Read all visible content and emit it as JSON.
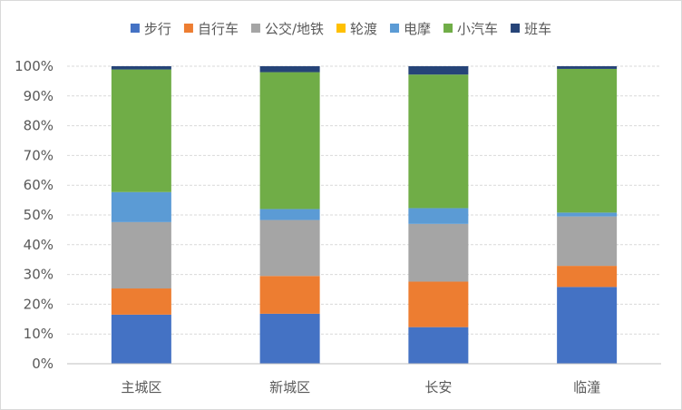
{
  "chart_data": {
    "type": "bar",
    "stacked": true,
    "normalized": true,
    "categories": [
      "主城区",
      "新城区",
      "长安",
      "临潼"
    ],
    "series": [
      {
        "name": "步行",
        "color": "#4472C4",
        "values": [
          16.5,
          16.8,
          12.3,
          25.8
        ]
      },
      {
        "name": "自行车",
        "color": "#ED7D31",
        "values": [
          8.8,
          12.7,
          15.3,
          7.1
        ]
      },
      {
        "name": "公交/地铁",
        "color": "#A5A5A5",
        "values": [
          22.3,
          18.8,
          19.4,
          16.6
        ]
      },
      {
        "name": "轮渡",
        "color": "#FFC000",
        "values": [
          0.0,
          0.0,
          0.0,
          0.0
        ]
      },
      {
        "name": "电摩",
        "color": "#5B9BD5",
        "values": [
          10.1,
          3.7,
          5.3,
          1.3
        ]
      },
      {
        "name": "小汽车",
        "color": "#70AD47",
        "values": [
          41.2,
          46.0,
          44.9,
          48.3
        ]
      },
      {
        "name": "班车",
        "color": "#264478",
        "values": [
          1.1,
          2.0,
          2.8,
          0.9
        ]
      }
    ],
    "yTicks": [
      "0%",
      "10%",
      "20%",
      "30%",
      "40%",
      "50%",
      "60%",
      "70%",
      "80%",
      "90%",
      "100%"
    ],
    "ylim": [
      0,
      100
    ],
    "grid": true,
    "legend_position": "top"
  }
}
